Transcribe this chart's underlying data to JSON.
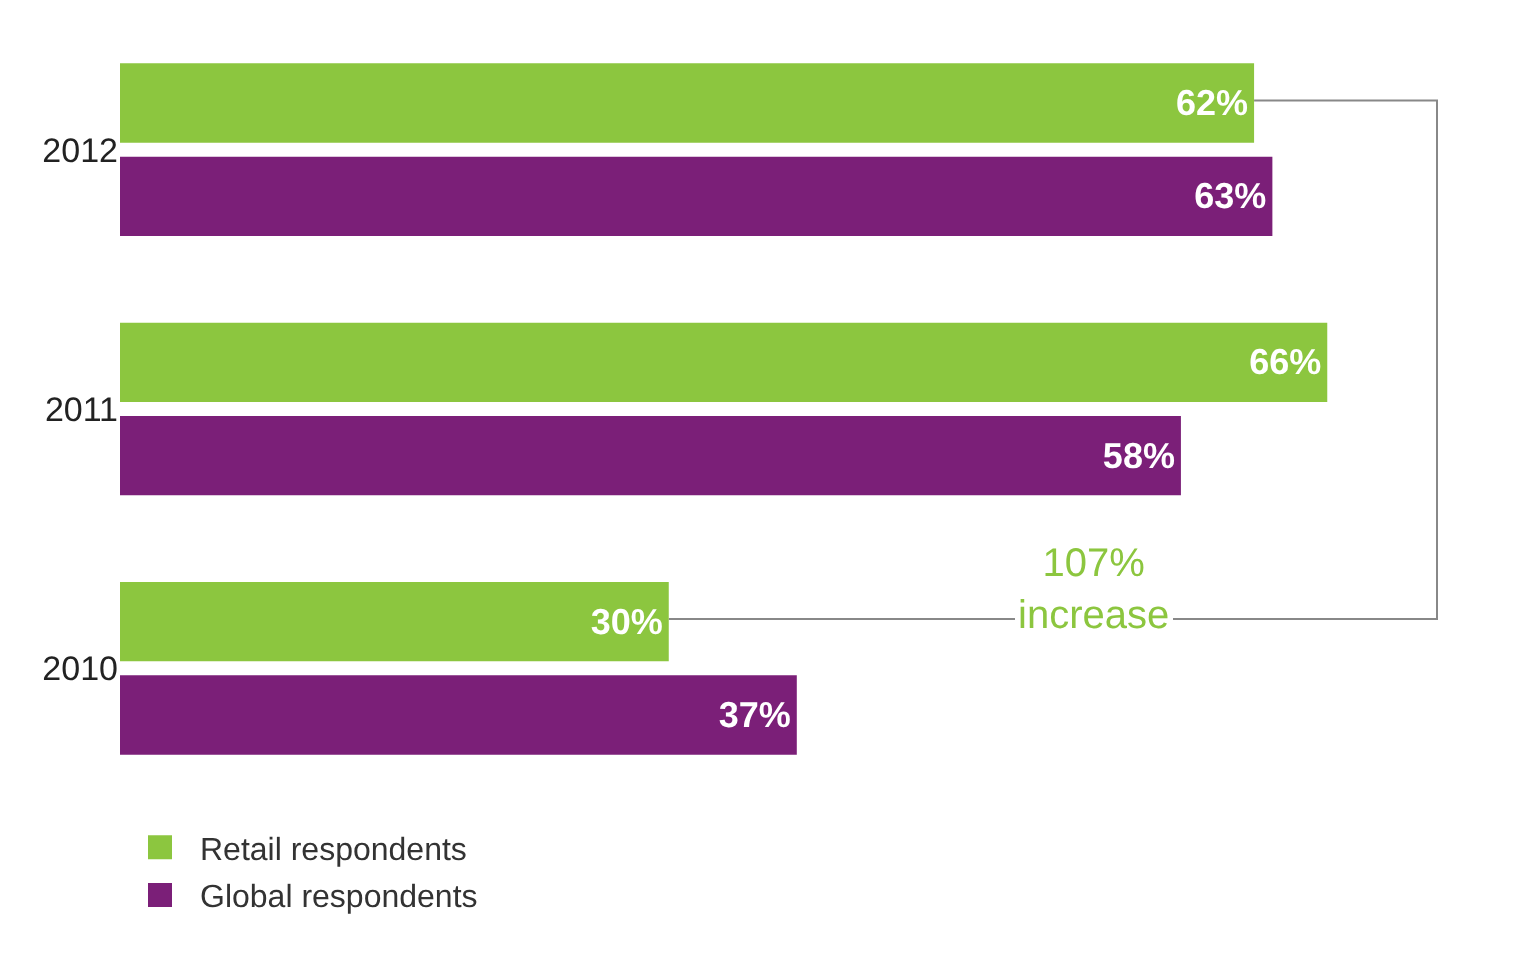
{
  "chart_data": {
    "type": "bar",
    "orientation": "horizontal",
    "categories": [
      "2012",
      "2011",
      "2010"
    ],
    "series": [
      {
        "name": "Retail respondents",
        "color": "#8cc63f",
        "values": [
          62,
          66,
          30
        ],
        "value_labels": [
          "62%",
          "66%",
          "30%"
        ]
      },
      {
        "name": "Global respondents",
        "color": "#7b1f78",
        "values": [
          63,
          58,
          37
        ],
        "value_labels": [
          "63%",
          "58%",
          "37%"
        ]
      }
    ],
    "legend": "bottom left",
    "grid": false,
    "annotations": [
      "107%\nincrease"
    ]
  }
}
